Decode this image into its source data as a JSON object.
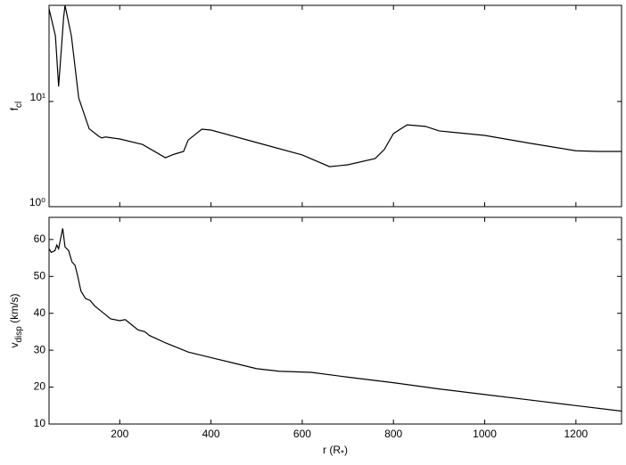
{
  "chart_data": [
    {
      "type": "line",
      "ylabel": [
        "f",
        "cl"
      ],
      "log_y": true,
      "color": "#000000",
      "x": [
        45,
        59,
        66,
        77,
        80,
        94,
        110,
        133,
        153,
        160,
        169,
        200,
        250,
        300,
        320,
        340,
        350,
        380,
        400,
        500,
        600,
        660,
        700,
        760,
        780,
        800,
        830,
        870,
        900,
        1000,
        1100,
        1200,
        1250,
        1300
      ],
      "values": [
        76,
        42,
        13.9,
        63,
        82,
        42,
        10.8,
        5.5,
        4.7,
        4.5,
        4.6,
        4.4,
        3.9,
        2.92,
        3.16,
        3.35,
        4.3,
        5.45,
        5.35,
        4.07,
        3.1,
        2.4,
        2.5,
        2.87,
        3.5,
        4.95,
        6.0,
        5.8,
        5.25,
        4.76,
        4.0,
        3.4,
        3.35,
        3.35
      ],
      "xlim": [
        45,
        1300
      ],
      "xticks": [
        200,
        400,
        600,
        800,
        1000,
        1200
      ],
      "ylim": [
        1,
        82
      ],
      "yticks": [
        {
          "value": 1,
          "label": "10⁰"
        },
        {
          "value": 10,
          "label": "10¹"
        }
      ]
    },
    {
      "type": "line",
      "ylabel": [
        "v",
        "disp",
        " (km/s)"
      ],
      "xlabel": [
        "r (R",
        "*",
        ")"
      ],
      "color": "#000000",
      "x": [
        45,
        50,
        58,
        62,
        66,
        70,
        75,
        80,
        88,
        95,
        102,
        108,
        115,
        125,
        135,
        145,
        155,
        165,
        180,
        200,
        212,
        225,
        240,
        255,
        265,
        300,
        350,
        400,
        450,
        500,
        550,
        620,
        700,
        800,
        900,
        1000,
        1100,
        1200,
        1300
      ],
      "values": [
        57.5,
        56.5,
        57,
        58.5,
        57.5,
        60,
        63,
        58,
        57,
        54,
        53,
        50,
        46,
        44,
        43.5,
        42,
        41,
        40,
        38.5,
        38,
        38.3,
        37,
        35.5,
        35,
        34,
        32,
        29.5,
        28,
        26.5,
        25,
        24.3,
        24,
        22.7,
        21.2,
        19.5,
        18,
        16.5,
        15,
        13.5
      ],
      "xlim": [
        45,
        1300
      ],
      "xticks": [
        200,
        400,
        600,
        800,
        1000,
        1200
      ],
      "ylim": [
        10,
        66
      ],
      "yticks": [
        10,
        20,
        30,
        40,
        50,
        60
      ]
    }
  ]
}
